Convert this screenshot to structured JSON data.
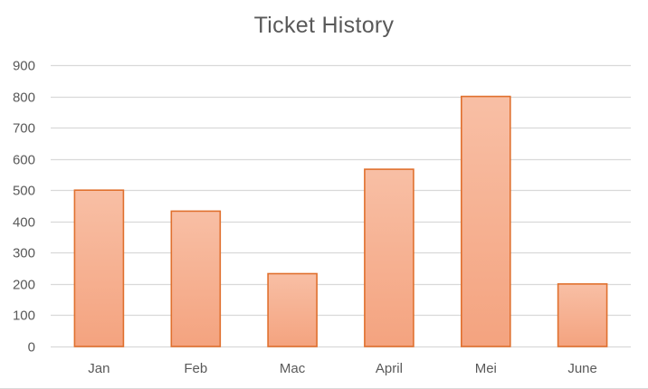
{
  "chart_data": {
    "type": "bar",
    "title": "Ticket History",
    "xlabel": "",
    "ylabel": "",
    "categories": [
      "Jan",
      "Feb",
      "Mac",
      "April",
      "Mei",
      "June"
    ],
    "values": [
      500,
      433,
      233,
      567,
      800,
      200
    ],
    "ylim": [
      0,
      900
    ],
    "yticks": [
      0,
      100,
      200,
      300,
      400,
      500,
      600,
      700,
      800,
      900
    ],
    "grid": true,
    "legend": "none",
    "colors": {
      "bar_fill_top": "#f8bfa5",
      "bar_fill_bottom": "#f4a37f",
      "bar_stroke": "#e0702e",
      "gridline": "#d9d9d9",
      "axis_text": "#595959"
    }
  }
}
